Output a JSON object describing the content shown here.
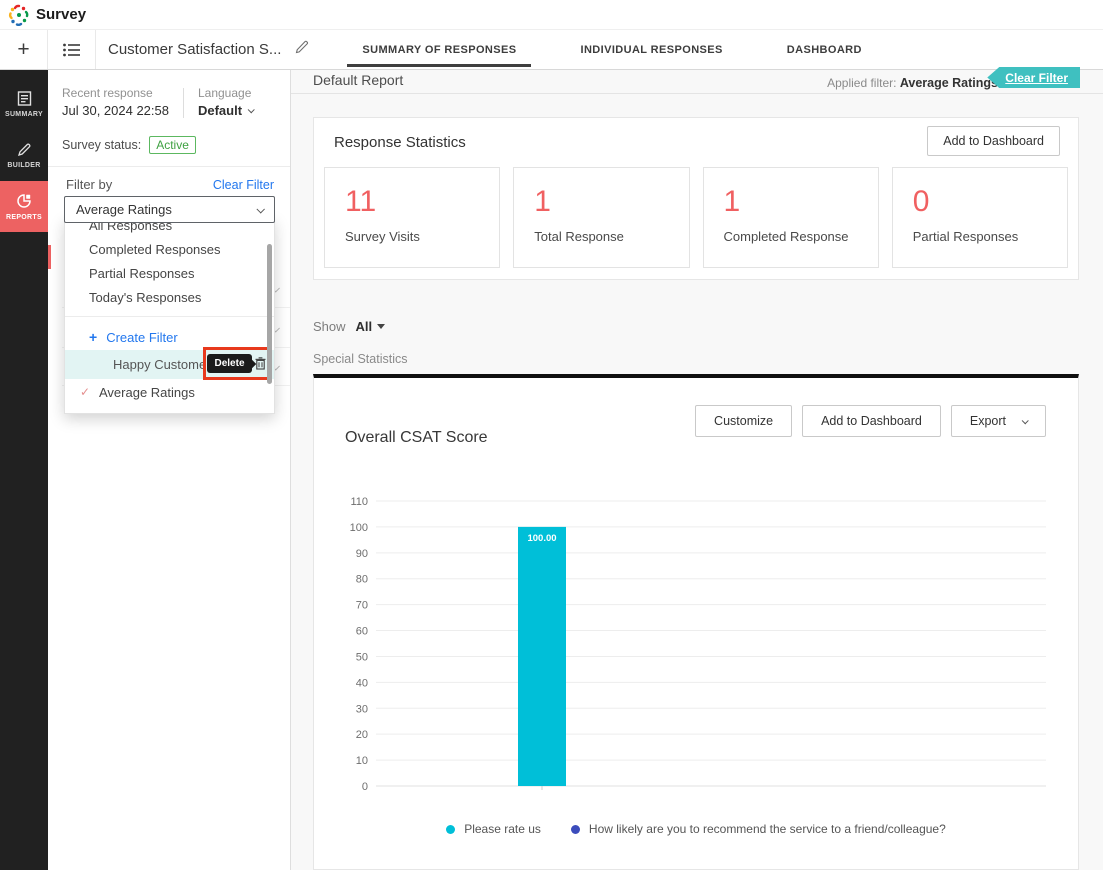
{
  "header": {
    "app_name": "Survey"
  },
  "toolbar": {
    "survey_title": "Customer Satisfaction S...",
    "tabs": [
      "SUMMARY OF RESPONSES",
      "INDIVIDUAL RESPONSES",
      "DASHBOARD"
    ]
  },
  "sidebar": {
    "items": [
      {
        "label": "SUMMARY",
        "active": false
      },
      {
        "label": "BUILDER",
        "active": false
      },
      {
        "label": "REPORTS",
        "active": true
      }
    ]
  },
  "panel": {
    "recent_response_label": "Recent response",
    "recent_response_value": "Jul 30, 2024 22:58",
    "language_label": "Language",
    "language_value": "Default",
    "survey_status_label": "Survey status:",
    "survey_status_value": "Active",
    "filter_by_label": "Filter by",
    "clear_filter_link": "Clear Filter",
    "filter_select_value": "Average Ratings",
    "dropdown": {
      "options": [
        "All Responses",
        "Completed Responses",
        "Partial Responses",
        "Today's Responses"
      ],
      "create_filter_label": "Create Filter",
      "custom_filter": "Happy Customers",
      "selected_filter": "Average Ratings",
      "delete_tooltip": "Delete"
    }
  },
  "main": {
    "report_name": "Default Report",
    "applied_filter_label": "Applied filter:",
    "applied_filter_value": "Average Ratings",
    "clear_filter_tag": "Clear Filter",
    "response_statistics": {
      "title": "Response Statistics",
      "add_to_dashboard": "Add to Dashboard",
      "stats": [
        {
          "value": "11",
          "label": "Survey Visits"
        },
        {
          "value": "1",
          "label": "Total Response"
        },
        {
          "value": "1",
          "label": "Completed Response"
        },
        {
          "value": "0",
          "label": "Partial Responses"
        }
      ]
    },
    "show_label": "Show",
    "show_value": "All",
    "special_statistics_label": "Special Statistics",
    "chart_card": {
      "customize_button": "Customize",
      "add_to_dashboard_button": "Add to Dashboard",
      "export_button": "Export",
      "title": "Overall CSAT Score"
    }
  },
  "chart_data": {
    "type": "bar",
    "title": "Overall CSAT Score",
    "categories": [
      ""
    ],
    "series": [
      {
        "name": "Please rate us",
        "color": "#00bfd8",
        "values": [
          100.0
        ],
        "labels": [
          "100.00"
        ]
      },
      {
        "name": "How likely are you to recommend the service to a friend/colleague?",
        "color": "#3c4cbc",
        "values": [],
        "labels": []
      }
    ],
    "ylim": [
      0,
      110
    ],
    "ytick_step": 10,
    "grid": true,
    "legend_position": "bottom"
  },
  "colors": {
    "accent_red": "#f06061",
    "sidebar_active": "#ed6262",
    "teal_tag": "#3fc0c0",
    "link_blue": "#2277ee",
    "status_green": "#3fa142",
    "annotation_red": "#e8391d"
  }
}
